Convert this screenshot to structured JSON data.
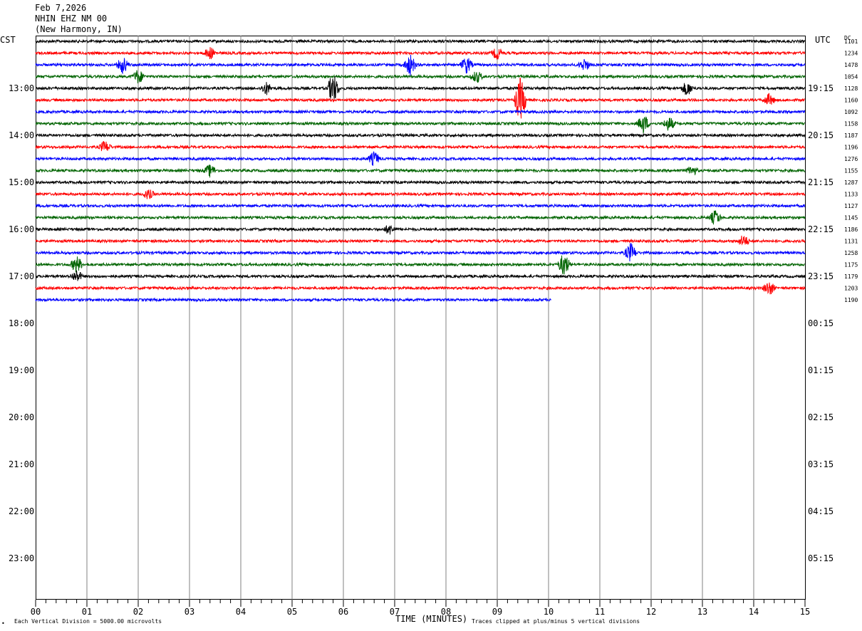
{
  "header": {
    "date": "Feb 7,2026",
    "station": "NHIN EHZ NM 00",
    "location": "(New Harmony, IN)"
  },
  "left_timezone": "CST",
  "right_timezone": "UTC",
  "dc_label": "DC",
  "footer": {
    "scale_note": "Each Vertical Division = 5000.00 microvolts",
    "clip_note": "Traces clipped at plus/minus 5 vertical divisions",
    "corner_mark": "•"
  },
  "chart_data": {
    "type": "line",
    "subtype": "helicorder",
    "xlabel": "TIME (MINUTES)",
    "x_ticks": [
      "00",
      "01",
      "02",
      "03",
      "04",
      "05",
      "06",
      "07",
      "08",
      "09",
      "10",
      "11",
      "12",
      "13",
      "14",
      "15"
    ],
    "xlim": [
      0,
      15
    ],
    "row_minutes": 15,
    "trace_color_cycle": [
      "#000000",
      "#ff0000",
      "#0000ff",
      "#006400"
    ],
    "left_hour_labels": [
      "13:00",
      "14:00",
      "15:00",
      "16:00",
      "17:00",
      "18:00",
      "19:00",
      "20:00",
      "21:00",
      "22:00",
      "23:00"
    ],
    "right_hour_labels": [
      "19:15",
      "20:15",
      "21:15",
      "22:15",
      "23:15",
      "00:15",
      "01:15",
      "02:15",
      "03:15",
      "04:15",
      "05:15"
    ],
    "first_row_start_cst": "12:00",
    "rows_total": 48,
    "last_trace_end_minute": 10.05,
    "dc_offsets": [
      "1101",
      "1234",
      "1478",
      "1054",
      "1128",
      "1160",
      "1092",
      "1158",
      "1187",
      "1196",
      "1276",
      "1155",
      "1287",
      "1133",
      "1127",
      "1145",
      "1186",
      "1131",
      "1258",
      "1175",
      "1179",
      "1203",
      "1190"
    ],
    "series": [
      {
        "row": 0,
        "color": "#000000",
        "events": []
      },
      {
        "row": 1,
        "color": "#ff0000",
        "events": [
          {
            "minute": 3.4,
            "amp": 0.5
          },
          {
            "minute": 9.0,
            "amp": 0.5
          }
        ]
      },
      {
        "row": 2,
        "color": "#0000ff",
        "events": [
          {
            "minute": 1.7,
            "amp": 0.7
          },
          {
            "minute": 7.3,
            "amp": 0.9
          },
          {
            "minute": 8.4,
            "amp": 0.7
          },
          {
            "minute": 10.7,
            "amp": 0.5
          }
        ]
      },
      {
        "row": 3,
        "color": "#006400",
        "events": [
          {
            "minute": 2.0,
            "amp": 0.6
          },
          {
            "minute": 8.6,
            "amp": 0.5
          }
        ]
      },
      {
        "row": 4,
        "color": "#000000",
        "events": [
          {
            "minute": 4.5,
            "amp": 0.5
          },
          {
            "minute": 5.8,
            "amp": 1.3
          },
          {
            "minute": 12.7,
            "amp": 0.6
          }
        ]
      },
      {
        "row": 5,
        "color": "#ff0000",
        "events": [
          {
            "minute": 9.45,
            "amp": 1.9
          },
          {
            "minute": 14.3,
            "amp": 0.5
          }
        ]
      },
      {
        "row": 6,
        "color": "#0000ff",
        "events": []
      },
      {
        "row": 7,
        "color": "#006400",
        "events": [
          {
            "minute": 11.85,
            "amp": 0.8
          },
          {
            "minute": 12.35,
            "amp": 0.6
          }
        ]
      },
      {
        "row": 8,
        "color": "#000000",
        "events": []
      },
      {
        "row": 9,
        "color": "#ff0000",
        "events": [
          {
            "minute": 1.35,
            "amp": 0.5
          }
        ]
      },
      {
        "row": 10,
        "color": "#0000ff",
        "events": [
          {
            "minute": 6.6,
            "amp": 0.6
          }
        ]
      },
      {
        "row": 11,
        "color": "#006400",
        "events": [
          {
            "minute": 3.4,
            "amp": 0.5
          },
          {
            "minute": 12.8,
            "amp": 0.4
          }
        ]
      },
      {
        "row": 12,
        "color": "#000000",
        "events": []
      },
      {
        "row": 13,
        "color": "#ff0000",
        "events": [
          {
            "minute": 2.2,
            "amp": 0.4
          }
        ]
      },
      {
        "row": 14,
        "color": "#0000ff",
        "events": []
      },
      {
        "row": 15,
        "color": "#006400",
        "events": [
          {
            "minute": 13.25,
            "amp": 0.6
          }
        ]
      },
      {
        "row": 16,
        "color": "#000000",
        "events": [
          {
            "minute": 6.9,
            "amp": 0.4
          }
        ]
      },
      {
        "row": 17,
        "color": "#ff0000",
        "events": [
          {
            "minute": 13.8,
            "amp": 0.5
          }
        ]
      },
      {
        "row": 18,
        "color": "#0000ff",
        "events": [
          {
            "minute": 11.6,
            "amp": 0.8
          }
        ]
      },
      {
        "row": 19,
        "color": "#006400",
        "events": [
          {
            "minute": 0.8,
            "amp": 0.7
          },
          {
            "minute": 10.3,
            "amp": 1.0
          }
        ]
      },
      {
        "row": 20,
        "color": "#000000",
        "events": [
          {
            "minute": 0.8,
            "amp": 0.5
          }
        ]
      },
      {
        "row": 21,
        "color": "#ff0000",
        "events": [
          {
            "minute": 14.3,
            "amp": 0.6
          }
        ]
      },
      {
        "row": 22,
        "color": "#0000ff",
        "events": []
      }
    ]
  }
}
